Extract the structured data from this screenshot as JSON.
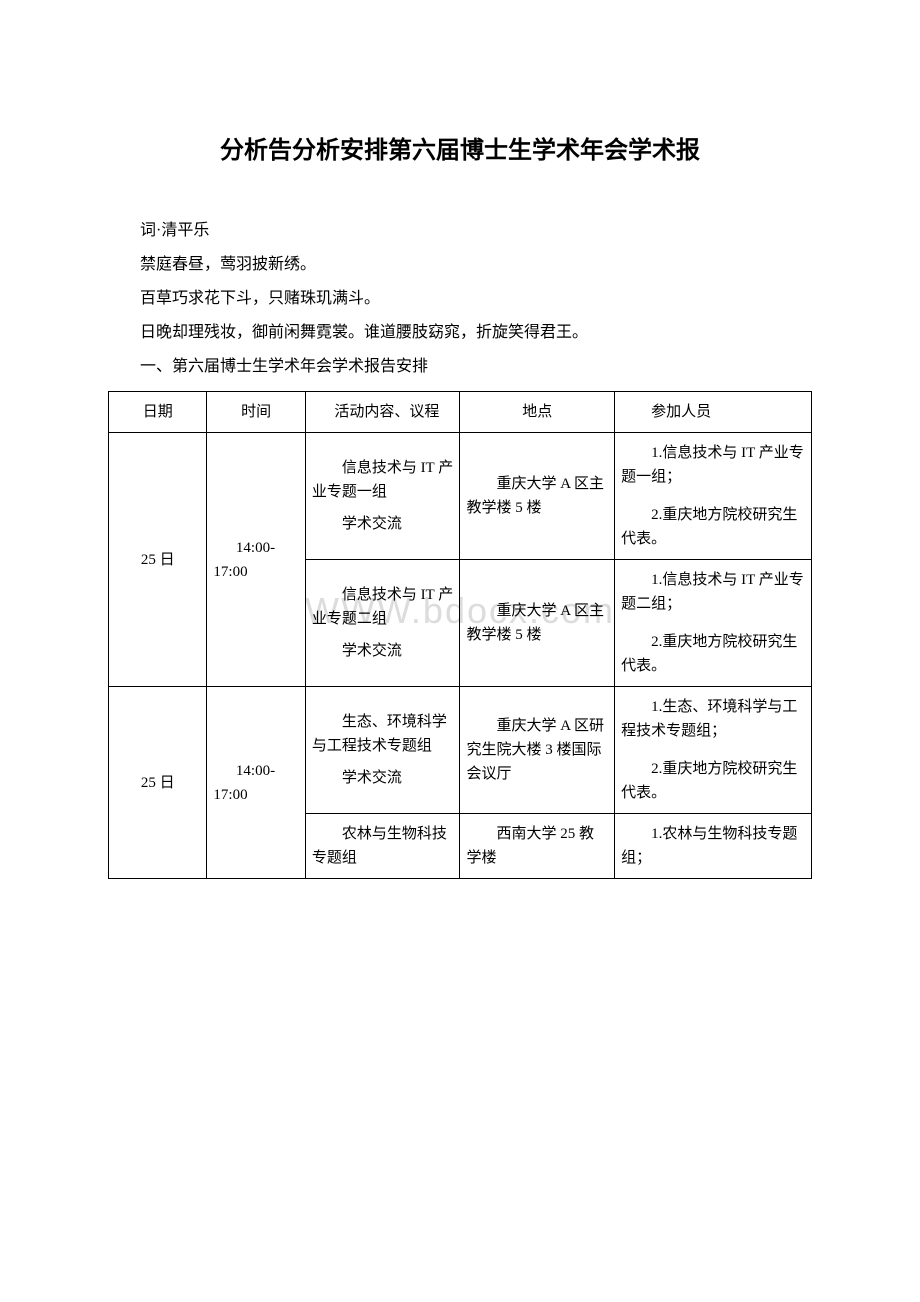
{
  "title": "分析告分析安排第六届博士生学术年会学术报",
  "paragraphs": [
    "词·清平乐",
    "禁庭春昼，莺羽披新绣。",
    "百草巧求花下斗，只赌珠玑满斗。",
    "日晚却理残妆，御前闲舞霓裳。谁道腰肢窈窕，折旋笑得君王。"
  ],
  "section_heading": "一、第六届博士生学术年会学术报告安排",
  "watermark_text": "WWW.bdocx.com",
  "table": {
    "headers": {
      "date": "日期",
      "time": "时间",
      "content": "活动内容、议程",
      "location": "地点",
      "people": "参加人员"
    },
    "rows": [
      {
        "date": "25 日",
        "time": "14:00-17:00",
        "rowspan": 2,
        "items": [
          {
            "content_main": "信息技术与 IT 产业专题一组",
            "content_sub": "学术交流",
            "location": "重庆大学 A 区主教学楼 5 楼",
            "people_1": "1.信息技术与 IT 产业专题一组；",
            "people_2": "2.重庆地方院校研究生代表。"
          },
          {
            "content_main": "信息技术与 IT 产业专题二组",
            "content_sub": "学术交流",
            "location": "重庆大学 A 区主教学楼 5 楼",
            "people_1": "1.信息技术与 IT 产业专题二组；",
            "people_2": "2.重庆地方院校研究生代表。"
          }
        ]
      },
      {
        "date": "25 日",
        "time": "14:00-17:00",
        "rowspan": 2,
        "items": [
          {
            "content_main": "生态、环境科学与工程技术专题组",
            "content_sub": "学术交流",
            "location": "重庆大学 A 区研究生院大楼 3 楼国际会议厅",
            "people_1": "1.生态、环境科学与工程技术专题组；",
            "people_2": "2.重庆地方院校研究生代表。"
          },
          {
            "content_main": "农林与生物科技专题组",
            "content_sub": "",
            "location": "西南大学 25 教学楼",
            "people_1": "1.农林与生物科技专题组；",
            "people_2": ""
          }
        ]
      }
    ]
  }
}
